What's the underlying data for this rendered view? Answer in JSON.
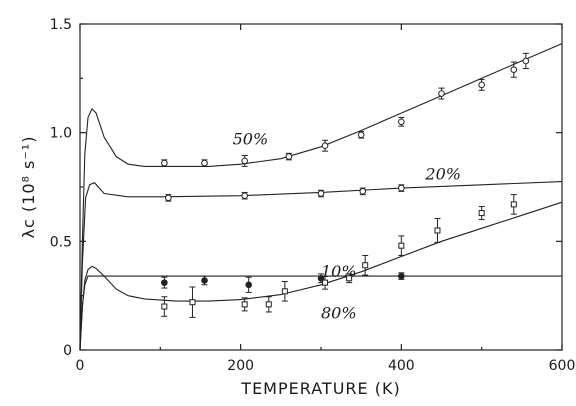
{
  "chart_data": {
    "type": "scatter",
    "title": "",
    "xlabel": "TEMPERATURE (K)",
    "ylabel": "λc (10⁸ s⁻¹)",
    "xlim": [
      0,
      600
    ],
    "ylim": [
      0,
      1.5
    ],
    "x_ticks": [
      0,
      200,
      400,
      600
    ],
    "x_tick_labels": [
      "0",
      "200",
      "400",
      "600"
    ],
    "y_ticks": [
      0,
      0.5,
      1.0,
      1.5
    ],
    "y_tick_labels": [
      "0",
      "0.5",
      "1.0",
      "1.5"
    ],
    "grid": false,
    "series": [
      {
        "name": "50%",
        "marker": "open-circle",
        "points": [
          [
            105,
            0.86
          ],
          [
            155,
            0.86
          ],
          [
            205,
            0.87
          ],
          [
            260,
            0.89
          ],
          [
            305,
            0.94
          ],
          [
            350,
            0.99
          ],
          [
            400,
            1.05
          ],
          [
            450,
            1.18
          ],
          [
            500,
            1.22
          ],
          [
            540,
            1.29
          ],
          [
            555,
            1.33
          ]
        ],
        "errors": [
          0.015,
          0.015,
          0.025,
          0.015,
          0.025,
          0.015,
          0.02,
          0.025,
          0.025,
          0.035,
          0.035
        ],
        "curve": [
          [
            0,
            0.0
          ],
          [
            3,
            0.5
          ],
          [
            6,
            0.9
          ],
          [
            10,
            1.07
          ],
          [
            15,
            1.11
          ],
          [
            20,
            1.09
          ],
          [
            30,
            0.98
          ],
          [
            45,
            0.89
          ],
          [
            60,
            0.855
          ],
          [
            80,
            0.845
          ],
          [
            120,
            0.845
          ],
          [
            160,
            0.845
          ],
          [
            200,
            0.855
          ],
          [
            250,
            0.88
          ],
          [
            300,
            0.935
          ],
          [
            350,
            1.01
          ],
          [
            400,
            1.09
          ],
          [
            450,
            1.17
          ],
          [
            500,
            1.25
          ],
          [
            550,
            1.33
          ],
          [
            600,
            1.41
          ]
        ]
      },
      {
        "name": "20%",
        "marker": "open-circle",
        "points": [
          [
            110,
            0.7
          ],
          [
            205,
            0.71
          ],
          [
            300,
            0.72
          ],
          [
            352,
            0.73
          ],
          [
            400,
            0.745
          ]
        ],
        "errors": [
          0.015,
          0.015,
          0.015,
          0.015,
          0.015
        ],
        "curve": [
          [
            0,
            0.0
          ],
          [
            3,
            0.4
          ],
          [
            7,
            0.7
          ],
          [
            12,
            0.76
          ],
          [
            18,
            0.77
          ],
          [
            30,
            0.72
          ],
          [
            60,
            0.705
          ],
          [
            100,
            0.705
          ],
          [
            200,
            0.71
          ],
          [
            300,
            0.725
          ],
          [
            400,
            0.745
          ],
          [
            500,
            0.76
          ],
          [
            600,
            0.775
          ]
        ]
      },
      {
        "name": "10%",
        "marker": "filled-circle",
        "points": [
          [
            105,
            0.31
          ],
          [
            155,
            0.32
          ],
          [
            210,
            0.3
          ],
          [
            300,
            0.33
          ],
          [
            400,
            0.34
          ]
        ],
        "errors": [
          0.025,
          0.02,
          0.035,
          0.02,
          0.015
        ],
        "curve": [
          [
            0,
            0.0
          ],
          [
            3,
            0.2
          ],
          [
            6,
            0.3
          ],
          [
            10,
            0.34
          ],
          [
            20,
            0.34
          ],
          [
            100,
            0.34
          ],
          [
            200,
            0.34
          ],
          [
            300,
            0.34
          ],
          [
            400,
            0.34
          ],
          [
            500,
            0.34
          ],
          [
            600,
            0.34
          ]
        ]
      },
      {
        "name": "80%",
        "marker": "open-square",
        "points": [
          [
            105,
            0.2
          ],
          [
            140,
            0.22
          ],
          [
            205,
            0.21
          ],
          [
            235,
            0.21
          ],
          [
            255,
            0.27
          ],
          [
            305,
            0.31
          ],
          [
            335,
            0.33
          ],
          [
            355,
            0.39
          ],
          [
            400,
            0.48
          ],
          [
            445,
            0.55
          ],
          [
            500,
            0.63
          ],
          [
            540,
            0.67
          ]
        ],
        "errors": [
          0.045,
          0.07,
          0.03,
          0.035,
          0.045,
          0.03,
          0.02,
          0.045,
          0.045,
          0.055,
          0.03,
          0.045
        ],
        "curve": [
          [
            0,
            0.0
          ],
          [
            3,
            0.2
          ],
          [
            6,
            0.32
          ],
          [
            10,
            0.37
          ],
          [
            15,
            0.385
          ],
          [
            20,
            0.375
          ],
          [
            30,
            0.34
          ],
          [
            45,
            0.28
          ],
          [
            60,
            0.25
          ],
          [
            80,
            0.235
          ],
          [
            120,
            0.225
          ],
          [
            160,
            0.225
          ],
          [
            200,
            0.232
          ],
          [
            250,
            0.255
          ],
          [
            300,
            0.3
          ],
          [
            350,
            0.36
          ],
          [
            400,
            0.43
          ],
          [
            450,
            0.5
          ],
          [
            500,
            0.56
          ],
          [
            550,
            0.62
          ],
          [
            600,
            0.68
          ]
        ]
      }
    ],
    "series_label_positions": [
      [
        190,
        0.945
      ],
      [
        430,
        0.785
      ],
      [
        300,
        0.335
      ],
      [
        300,
        0.145
      ]
    ],
    "marker_series": [
      "50%",
      "20%",
      "10%",
      "80%"
    ]
  }
}
